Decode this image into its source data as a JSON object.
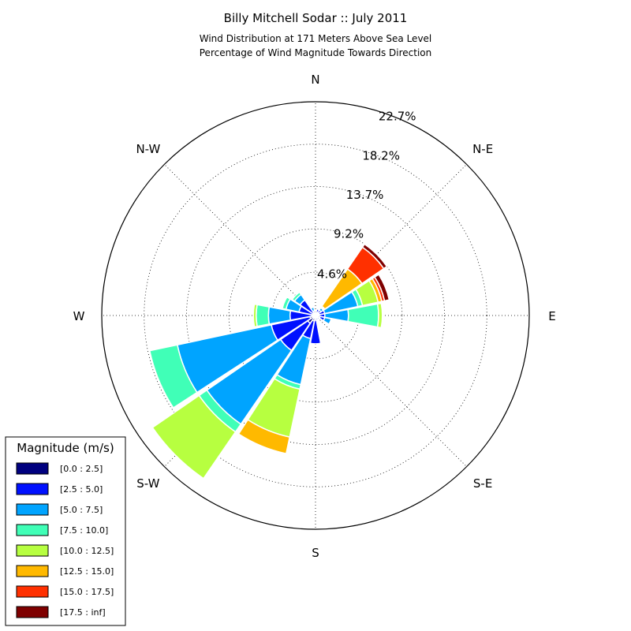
{
  "chart_data": {
    "type": "windrose",
    "title": "Billy Mitchell Sodar :: July 2011",
    "subtitle_lines": [
      "Wind Distribution at 171 Meters Above Sea Level",
      "Percentage of Wind Magnitude Towards Direction"
    ],
    "max_radius_value": 22.7,
    "ring_values": [
      4.6,
      9.2,
      13.7,
      18.2,
      22.7
    ],
    "ring_labels": [
      "4.6%",
      "9.2%",
      "13.7%",
      "18.2%",
      "22.7%"
    ],
    "directions": [
      {
        "label": "N",
        "angle": 0
      },
      {
        "label": "N-E",
        "angle": 45
      },
      {
        "label": "E",
        "angle": 90
      },
      {
        "label": "S-E",
        "angle": 135
      },
      {
        "label": "S",
        "angle": 180
      },
      {
        "label": "S-W",
        "angle": 225
      },
      {
        "label": "W",
        "angle": 270
      },
      {
        "label": "N-W",
        "angle": 315
      }
    ],
    "legend": {
      "title": "Magnitude (m/s)",
      "placement": "lower-left",
      "bins": [
        {
          "label": "[0.0 : 2.5]",
          "color": "#00007f"
        },
        {
          "label": "[2.5 : 5.0]",
          "color": "#0010ff"
        },
        {
          "label": "[5.0 : 7.5]",
          "color": "#00a4ff"
        },
        {
          "label": "[7.5 : 10.0]",
          "color": "#40ffb7"
        },
        {
          "label": "[10.0 : 12.5]",
          "color": "#b7ff40"
        },
        {
          "label": "[12.5 : 15.0]",
          "color": "#ffb900"
        },
        {
          "label": "[15.0 : 17.5]",
          "color": "#ff3000"
        },
        {
          "label": "[17.5 : inf]",
          "color": "#7f0000"
        }
      ]
    },
    "sectors": [
      {
        "direction": 0,
        "cumulative": [
          0.2,
          0.3
        ]
      },
      {
        "direction": 22.5,
        "cumulative": [
          0.3,
          0.7
        ]
      },
      {
        "direction": 45,
        "cumulative": [
          0.4,
          0.7,
          1.0,
          1.1,
          1.2,
          6.0,
          8.8,
          9.2
        ]
      },
      {
        "direction": 67.5,
        "cumulative": [
          0.4,
          1.0,
          4.6,
          5.1,
          6.8,
          7.2,
          7.5,
          8.0
        ]
      },
      {
        "direction": 90,
        "cumulative": [
          0.4,
          1.0,
          3.5,
          6.7,
          7.1
        ]
      },
      {
        "direction": 112.5,
        "cumulative": [
          0.5,
          1.0,
          1.7
        ]
      },
      {
        "direction": 135,
        "cumulative": [
          0.3,
          0.5
        ]
      },
      {
        "direction": 157.5,
        "cumulative": [
          0.3,
          0.5
        ]
      },
      {
        "direction": 180,
        "cumulative": [
          0.5,
          3.0
        ]
      },
      {
        "direction": 202.5,
        "cumulative": [
          0.6,
          2.5,
          7.5,
          8.0,
          13.2,
          15.0
        ]
      },
      {
        "direction": 225,
        "cumulative": [
          1.0,
          4.5,
          14.0,
          15.0,
          21.0
        ]
      },
      {
        "direction": 247.5,
        "cumulative": [
          0.6,
          4.8,
          15.0,
          18.0
        ]
      },
      {
        "direction": 270,
        "cumulative": [
          0.4,
          2.7,
          5.0,
          6.3,
          6.6
        ]
      },
      {
        "direction": 292.5,
        "cumulative": [
          0.3,
          1.8,
          3.2,
          3.6
        ]
      },
      {
        "direction": 315,
        "cumulative": [
          0.3,
          2.0,
          2.7,
          3.0
        ]
      },
      {
        "direction": 337.5,
        "cumulative": [
          0.2,
          0.5,
          0.9
        ]
      }
    ]
  }
}
